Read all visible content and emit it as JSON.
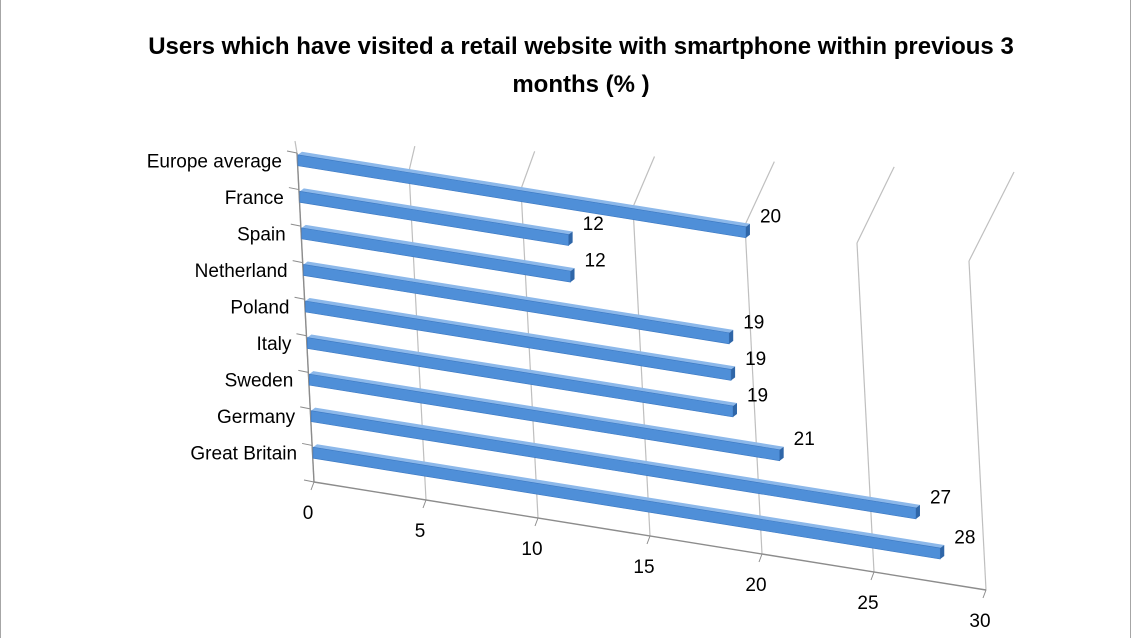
{
  "chart_data": {
    "type": "bar",
    "orientation": "horizontal",
    "style": "3d-perspective",
    "title": "Users which have visited a retail website with smartphone within previous 3 months (% )",
    "categories": [
      "Europe average",
      "France",
      "Spain",
      "Netherland",
      "Poland",
      "Italy",
      "Sweden",
      "Germany",
      "Great Britain"
    ],
    "values": [
      20,
      12,
      12,
      19,
      19,
      19,
      21,
      27,
      28
    ],
    "xlim": [
      0,
      30
    ],
    "x_ticks": [
      "0",
      "5",
      "10",
      "15",
      "20",
      "25",
      "30"
    ],
    "xlabel": "",
    "ylabel": "",
    "grid": true,
    "legend": "none",
    "data_labels": true,
    "bar_color": "#4f8fd8",
    "bar_top_color": "#8cb8ea",
    "bar_end_color": "#2f66a8",
    "grid_color": "#bfbfbf"
  }
}
